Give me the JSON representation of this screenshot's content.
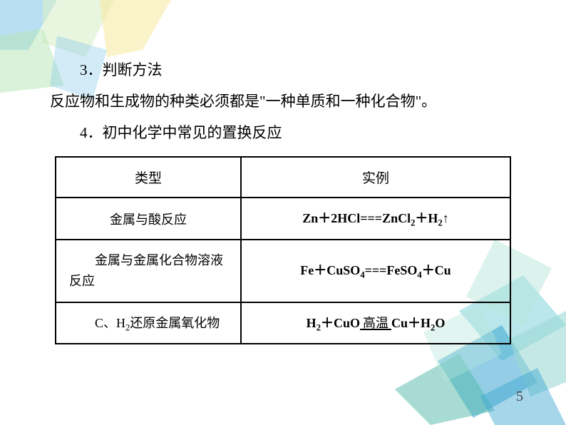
{
  "text": {
    "heading3": "3．判断方法",
    "paragraph3": "反应物和生成物的种类必须都是\"一种单质和一种化合物\"。",
    "heading4": "4．初中化学中常见的置换反应"
  },
  "table": {
    "columns": [
      "类型",
      "实例"
    ],
    "rows": [
      {
        "type": "金属与酸反应",
        "example_html": "Zn＋2HCl===ZnCl<span class=\"sub\">2</span>＋H<span class=\"sub\">2</span>↑"
      },
      {
        "type": "　　金属与金属化合物溶液<br>反应",
        "example_html": "Fe＋CuSO<span class=\"sub\">4</span>===FeSO<span class=\"sub\">4</span>＋Cu"
      },
      {
        "type": "　　C、H<span class=\"sub\">2</span>还原金属氧化物",
        "example_html": "H<span class=\"sub\">2</span>＋CuO<span class=\"cond-box\">高温</span>Cu＋H<span class=\"sub\">2</span>O"
      }
    ]
  },
  "page_number": "5",
  "style": {
    "bg_top_colors": [
      "#7fc7e8",
      "#d9efc9",
      "#f6e89a",
      "#b8e6b5"
    ],
    "bg_bottom_colors": [
      "#3aa5d1",
      "#7fd4da",
      "#b7e6dc",
      "#4fb7a8",
      "#9dd9d3"
    ],
    "text_color": "#000000",
    "table_border": "#000000",
    "font_sizes": {
      "body": 21,
      "table": 18,
      "header": 19,
      "page": 20
    }
  }
}
